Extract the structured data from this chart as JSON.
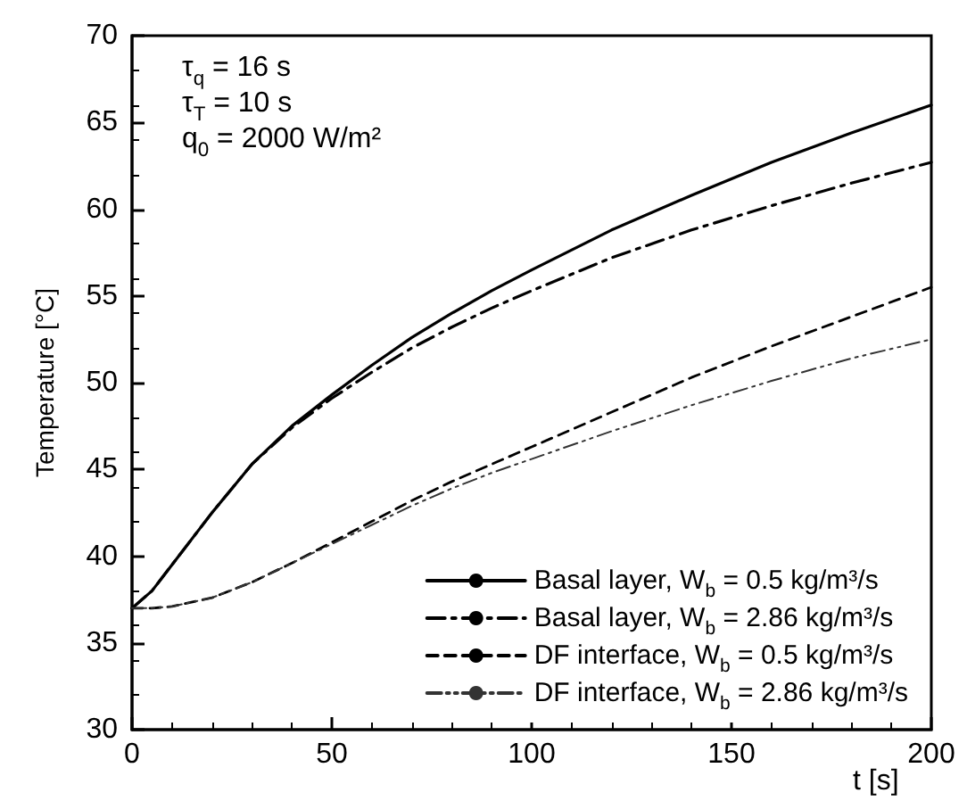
{
  "chart_data": {
    "type": "line",
    "xlabel": "t [s]",
    "ylabel": "Temperature [°C]",
    "annotations": [
      "τ$_{q}$ = 16 s",
      "τ$_{T}$ = 10 s",
      "q$_{0}$ = 2000 W/m²"
    ],
    "xlim": [
      0,
      200
    ],
    "xticks": [
      0,
      50,
      100,
      150,
      200
    ],
    "ylim": [
      30,
      70
    ],
    "yticks": [
      30,
      35,
      40,
      45,
      50,
      55,
      60,
      65,
      70
    ],
    "grid": false,
    "legend": "bottom right",
    "marker": "none",
    "x": [
      0,
      5,
      10,
      20,
      30,
      40,
      50,
      60,
      70,
      80,
      90,
      100,
      120,
      140,
      160,
      180,
      200
    ],
    "series": [
      {
        "name": "Basal layer, W$_{b}$ = 0.5 kg/m³/s",
        "color": "#000000",
        "line_style": "solid",
        "values": [
          37,
          38,
          39.5,
          42.5,
          45.3,
          47.5,
          49.3,
          51,
          52.6,
          54,
          55.3,
          56.5,
          58.8,
          60.8,
          62.7,
          64.4,
          66
        ]
      },
      {
        "name": "Basal layer, W$_{b}$ = 2.86 kg/m³/s",
        "color": "#000000",
        "line_style": "dashdot",
        "values": [
          37,
          38,
          39.5,
          42.5,
          45.3,
          47.4,
          49.1,
          50.6,
          52,
          53.2,
          54.3,
          55.3,
          57.2,
          58.8,
          60.2,
          61.5,
          62.7
        ]
      },
      {
        "name": "DF interface, W$_{b}$ = 0.5 kg/m³/s",
        "color": "#000000",
        "line_style": "dashed",
        "values": [
          37,
          37,
          37.1,
          37.6,
          38.5,
          39.6,
          40.8,
          42,
          43.2,
          44.3,
          45.3,
          46.3,
          48.3,
          50.3,
          52.1,
          53.8,
          55.5
        ]
      },
      {
        "name": "DF interface, W$_{b}$ = 2.86 kg/m³/s",
        "color": "#333333",
        "line_style": "dashdotdot",
        "values": [
          37,
          37,
          37.1,
          37.6,
          38.5,
          39.6,
          40.7,
          41.8,
          42.9,
          43.9,
          44.8,
          45.6,
          47.2,
          48.7,
          50.1,
          51.4,
          52.5
        ]
      }
    ]
  }
}
